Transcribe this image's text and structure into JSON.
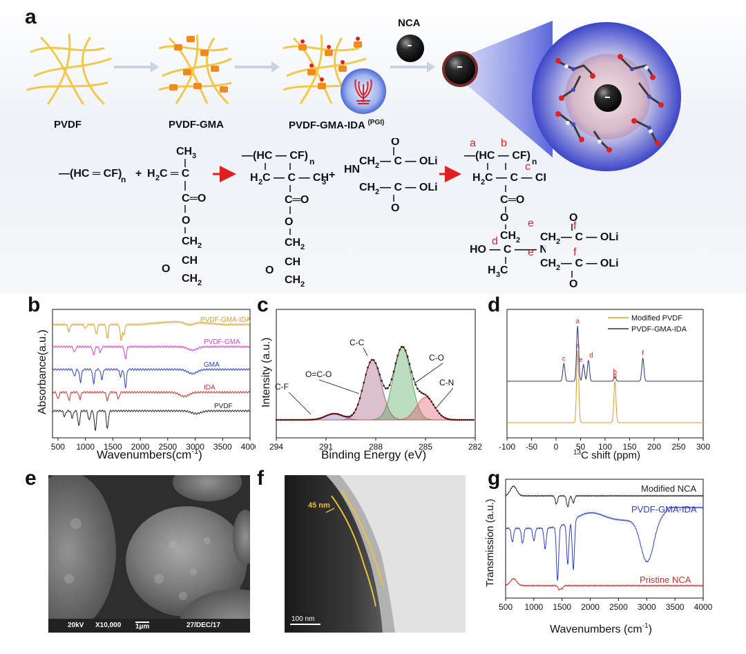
{
  "panel_labels": {
    "a": "a",
    "b": "b",
    "c": "c",
    "d": "d",
    "e": "e",
    "f": "f",
    "g": "g"
  },
  "panel_a": {
    "stage_labels": [
      "PVDF",
      "PVDF-GMA",
      "PVDF-GMA-IDA"
    ],
    "pgi_tag": "(PGI)",
    "nca_label": "NCA",
    "colors": {
      "fiber": "#f0c84a",
      "node": "#f08a20",
      "sphere": "#2a2a2a",
      "halo": "#c6c8ee",
      "reaction_arrow": "#e02020",
      "label_red": "#e02020"
    }
  },
  "panel_b": {
    "xlabel": "Wavenumbers(cm",
    "xlabel_sup": "-1",
    "xlabel_end": ")",
    "ylabel": "Absorbance(a.u.)",
    "chart_data": {
      "type": "line",
      "xlim": [
        400,
        4000
      ],
      "x_ticks": [
        500,
        1000,
        1500,
        2000,
        2500,
        3000,
        3500,
        4000
      ],
      "series": [
        {
          "name": "PVDF-GMA-IDA",
          "color": "#e39a1c"
        },
        {
          "name": "PVDF-GMA",
          "color": "#d43fd0"
        },
        {
          "name": "GMA",
          "color": "#2a3cc8"
        },
        {
          "name": "IDA",
          "color": "#d82a2a"
        },
        {
          "name": "PVDF",
          "color": "#222222"
        }
      ]
    }
  },
  "panel_c": {
    "xlabel": "Binding Energy (eV)",
    "ylabel": "Intensity (a.u.)",
    "chart_data": {
      "type": "line",
      "xlim": [
        294,
        282
      ],
      "x_ticks": [
        294,
        291,
        288,
        285,
        282
      ],
      "peaks": [
        {
          "name": "C-F",
          "center": 290.5,
          "height": 0.06,
          "color": "#7a6aa8"
        },
        {
          "name": "O=C-O",
          "center": 288.2,
          "height": 0.0,
          "color": "#a08ab8"
        },
        {
          "name": "C-C",
          "center": 288.2,
          "height": 0.58,
          "color": "#9a4a72"
        },
        {
          "name": "C-O",
          "center": 286.4,
          "height": 0.7,
          "color": "#3f9a4a"
        },
        {
          "name": "C-N",
          "center": 285.0,
          "height": 0.22,
          "color": "#e0465a"
        }
      ]
    }
  },
  "panel_d": {
    "xlabel": "C shift (ppm)",
    "xlabel_sup": "13",
    "legend": [
      "Modified PVDF",
      "PVDF-GMA-IDA"
    ],
    "chart_data": {
      "type": "line",
      "xlim": [
        -100,
        300
      ],
      "x_ticks": [
        -100,
        -50,
        0,
        50,
        100,
        150,
        200,
        250,
        300
      ],
      "series": [
        {
          "name": "Modified PVDF",
          "color": "#e39a1c",
          "peaks": [
            {
              "x": 44,
              "h": 0.95,
              "label": "a"
            },
            {
              "x": 120,
              "h": 0.55,
              "label": "b"
            }
          ]
        },
        {
          "name": "PVDF-GMA-IDA",
          "color": "#2a2f7a",
          "peaks": [
            {
              "x": 16,
              "h": 0.32,
              "label": "c"
            },
            {
              "x": 44,
              "h": 1.0,
              "label": "a"
            },
            {
              "x": 56,
              "h": 0.3,
              "label": "e"
            },
            {
              "x": 66,
              "h": 0.38,
              "label": "d"
            },
            {
              "x": 120,
              "h": 0.08,
              "label": "b"
            },
            {
              "x": 177,
              "h": 0.42,
              "label": "f"
            }
          ]
        }
      ]
    }
  },
  "panel_e": {
    "info": [
      "20kV",
      "X10,000",
      "1µm",
      "27/DEC/17"
    ]
  },
  "panel_f": {
    "thickness": "45 nm",
    "scale": "100 nm"
  },
  "panel_g": {
    "xlabel": "Wavenumbers (cm",
    "xlabel_sup": "-1",
    "xlabel_end": ")",
    "ylabel": "Transmission (a.u.)",
    "chart_data": {
      "type": "line",
      "xlim": [
        500,
        4000
      ],
      "x_ticks": [
        500,
        1000,
        1500,
        2000,
        2500,
        3000,
        3500,
        4000
      ],
      "series": [
        {
          "name": "Modified NCA",
          "color": "#222222"
        },
        {
          "name": "PVDF-GMA-IDA",
          "color": "#2a3cc8"
        },
        {
          "name": "Pristine NCA",
          "color": "#d82a2a"
        }
      ]
    }
  }
}
